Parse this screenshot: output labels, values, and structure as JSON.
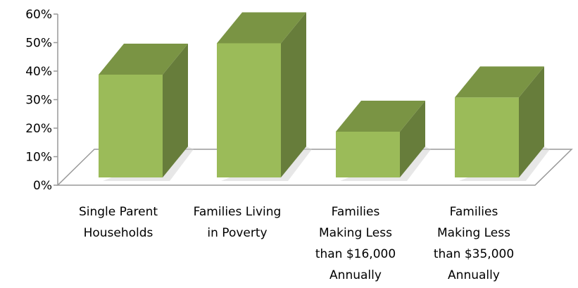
{
  "chart_data": {
    "type": "bar",
    "style": "3d-column",
    "categories": [
      [
        "Single Parent",
        "Households"
      ],
      [
        "Families Living",
        "in Poverty"
      ],
      [
        "Families",
        "Making Less",
        "than $16,000",
        "Annually"
      ],
      [
        "Families",
        "Making Less",
        "than $35,000",
        "Annually"
      ]
    ],
    "values": [
      0.4,
      0.51,
      0.2,
      0.32
    ],
    "ylim": [
      0,
      0.6
    ],
    "yticks": [
      0,
      0.1,
      0.2,
      0.3,
      0.4,
      0.5,
      0.6
    ],
    "ytick_labels": [
      "0%",
      "10%",
      "20%",
      "30%",
      "40%",
      "50%",
      "60%"
    ],
    "title": "",
    "xlabel": "",
    "ylabel": "",
    "grid": false,
    "legend": "none",
    "colors": {
      "bar_front": "#9bbb59",
      "bar_side": "#677d3b",
      "bar_top": "#7a9444",
      "floor_line": "#999999",
      "floor_fill": "#ffffff"
    }
  }
}
